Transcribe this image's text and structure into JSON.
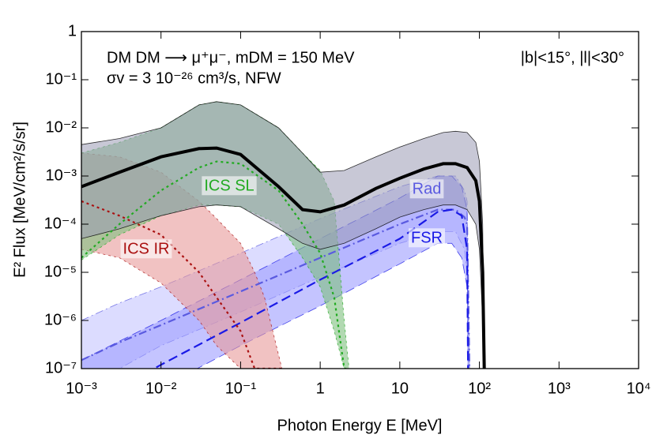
{
  "chart_data": {
    "type": "line",
    "xlabel": "Photon Energy E [MeV]",
    "ylabel": "E² Flux [MeV/cm²/s/sr]",
    "annotations": [
      "DM DM ⟶ μ⁺μ⁻, mDM = 150 MeV",
      "σv = 3 10⁻²⁶ cm³/s, NFW",
      "|b|<15°, |l|<30°"
    ],
    "xscale": "log",
    "yscale": "log",
    "xlim": [
      0.001,
      10000
    ],
    "ylim": [
      1e-07,
      1
    ],
    "xticks": [
      {
        "value": 0.001,
        "label": "10⁻³"
      },
      {
        "value": 0.01,
        "label": "10⁻²"
      },
      {
        "value": 0.1,
        "label": "10⁻¹"
      },
      1,
      10,
      {
        "value": 100,
        "label": "10²"
      },
      {
        "value": 1000,
        "label": "10³"
      },
      {
        "value": 10000,
        "label": "10⁴"
      }
    ],
    "yticks": [
      {
        "value": 1e-07,
        "label": "10⁻⁷"
      },
      {
        "value": 1e-06,
        "label": "10⁻⁶"
      },
      {
        "value": 1e-05,
        "label": "10⁻⁵"
      },
      {
        "value": 0.0001,
        "label": "10⁻⁴"
      },
      {
        "value": 0.001,
        "label": "10⁻³"
      },
      {
        "value": 0.01,
        "label": "10⁻²"
      },
      {
        "value": 0.1,
        "label": "10⁻¹"
      },
      1
    ],
    "series": [
      {
        "name": "Rad",
        "color": "#5a5ae0",
        "band_color": "#c4c4ff",
        "dash": "10 4 2 4",
        "x": [
          0.001,
          0.003,
          0.01,
          0.1,
          1,
          10,
          30,
          50,
          65,
          70,
          75
        ],
        "values": [
          1.5e-07,
          3.5e-07,
          8e-07,
          4e-06,
          2e-05,
          0.0001,
          0.0002,
          0.0002,
          0.00014,
          0.0001,
          1e-07
        ],
        "upper": [
          1e-06,
          2.3e-06,
          5e-06,
          2.5e-05,
          0.00013,
          0.0006,
          0.001,
          0.001,
          0.0005,
          0.0003,
          1e-07
        ],
        "lower": [
          5e-08,
          1e-07,
          3e-07,
          1.5e-06,
          8e-06,
          4e-05,
          7e-05,
          7e-05,
          3e-05,
          1e-05,
          1e-07
        ]
      },
      {
        "name": "FSR",
        "color": "#1a1ae6",
        "band_color": "#9c9cff",
        "dash": "12 6",
        "x": [
          0.001,
          0.01,
          0.1,
          1,
          10,
          30,
          45,
          60,
          70,
          72
        ],
        "values": [
          1.5e-08,
          1.2e-07,
          9e-07,
          7e-06,
          5e-05,
          0.00018,
          0.0002,
          0.00015,
          3e-05,
          1e-07
        ],
        "upper": [
          1.5e-07,
          1e-06,
          7e-06,
          5e-05,
          0.00035,
          0.001,
          0.001,
          0.0006,
          0.0002,
          1e-07
        ],
        "lower": [
          5e-09,
          4e-08,
          3e-07,
          2e-06,
          1.5e-05,
          4e-05,
          4e-05,
          2e-05,
          5e-06,
          1e-07
        ]
      },
      {
        "name": "ICS IR",
        "color": "#aa1111",
        "band_color": "#e89a9a",
        "dash": "3 4",
        "x": [
          0.001,
          0.003,
          0.01,
          0.03,
          0.05,
          0.1,
          0.15,
          0.2,
          0.33
        ],
        "values": [
          0.0003,
          0.00015,
          6e-05,
          1e-05,
          3e-06,
          6e-07,
          1e-07,
          1e-07,
          1e-07
        ],
        "upper": [
          0.003,
          0.0025,
          0.0012,
          0.0003,
          0.00013,
          4e-05,
          1e-05,
          3e-06,
          1e-07
        ],
        "lower": [
          3e-05,
          2e-05,
          6e-06,
          1e-06,
          3e-07,
          1e-07,
          1e-07,
          1e-07,
          1e-07
        ]
      },
      {
        "name": "ICS SL",
        "color": "#22aa22",
        "band_color": "#7fc07f",
        "dash": "3 4",
        "x": [
          0.001,
          0.003,
          0.01,
          0.03,
          0.05,
          0.1,
          0.3,
          0.6,
          1,
          1.5,
          2,
          2.3
        ],
        "values": [
          2e-05,
          0.0001,
          0.0005,
          0.0015,
          0.002,
          0.0018,
          0.0005,
          0.0001,
          2.5e-05,
          3e-06,
          1e-07,
          1e-07
        ],
        "upper": [
          0.003,
          0.005,
          0.01,
          0.03,
          0.035,
          0.03,
          0.01,
          0.003,
          0.0013,
          0.0003,
          1e-06,
          1e-07
        ],
        "lower": [
          1.8e-05,
          6e-05,
          0.00015,
          0.00025,
          0.00025,
          0.00023,
          0.0001,
          2e-05,
          5e-06,
          6e-07,
          1e-07,
          1e-07
        ]
      },
      {
        "color": "#000000",
        "band_color": "#9a9ab4",
        "dash": "none",
        "x": [
          0.001,
          0.003,
          0.01,
          0.03,
          0.05,
          0.1,
          0.3,
          0.6,
          1,
          2,
          5,
          10,
          20,
          35,
          50,
          70,
          90,
          100,
          110,
          115
        ],
        "values": [
          0.0006,
          0.0012,
          0.0025,
          0.0037,
          0.0038,
          0.0028,
          0.0006,
          0.0002,
          0.00018,
          0.00025,
          0.00055,
          0.0009,
          0.0014,
          0.0018,
          0.0018,
          0.0015,
          0.0008,
          0.0003,
          1e-05,
          1e-07
        ],
        "upper": [
          0.0045,
          0.006,
          0.01,
          0.03,
          0.035,
          0.03,
          0.01,
          0.003,
          0.0012,
          0.0013,
          0.0025,
          0.004,
          0.006,
          0.008,
          0.0085,
          0.008,
          0.005,
          0.002,
          0.0001,
          1e-07
        ],
        "lower": [
          5e-05,
          8e-05,
          0.00015,
          0.00023,
          0.00025,
          0.00023,
          8e-05,
          4e-05,
          3e-05,
          4e-05,
          8e-05,
          0.00014,
          0.0002,
          0.00025,
          0.00025,
          0.0002,
          0.0001,
          3e-05,
          1e-06,
          1e-07
        ]
      }
    ]
  }
}
